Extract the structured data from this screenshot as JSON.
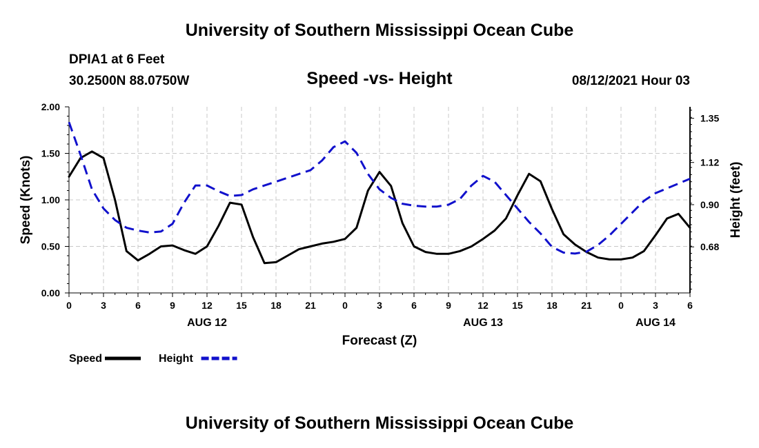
{
  "header": {
    "title": "University of Southern Mississippi Ocean Cube",
    "station": "DPIA1 at 6 Feet",
    "coords": "30.2500N  88.0750W",
    "subtitle": "Speed -vs- Height",
    "timestamp": "08/12/2021 Hour 03"
  },
  "footer": {
    "title": "University of Southern Mississippi Ocean Cube"
  },
  "chart_data": {
    "type": "line",
    "title": "Speed -vs- Height",
    "xlabel": "Forecast (Z)",
    "ylabel": "Speed (Knots)",
    "y2label": "Height (feet)",
    "xlim": [
      0,
      54
    ],
    "ylim": [
      0,
      2
    ],
    "y2lim": [
      0.44,
      1.41
    ],
    "grid": true,
    "x_ticks": [
      0,
      3,
      6,
      9,
      12,
      15,
      18,
      21,
      24,
      27,
      30,
      33,
      36,
      39,
      42,
      45,
      48,
      51,
      54
    ],
    "x_tick_labels": [
      "0",
      "3",
      "6",
      "9",
      "12",
      "15",
      "18",
      "21",
      "0",
      "3",
      "6",
      "9",
      "12",
      "15",
      "18",
      "21",
      "0",
      "3",
      "6"
    ],
    "y_ticks": [
      "0.00",
      "0.50",
      "1.00",
      "1.50",
      "2.00"
    ],
    "y2_ticks": [
      "0.68",
      "0.90",
      "1.12",
      "1.35"
    ],
    "date_labels": [
      {
        "x": 12,
        "label": "AUG 12"
      },
      {
        "x": 36,
        "label": "AUG 13"
      },
      {
        "x": 51,
        "label": "AUG 14"
      }
    ],
    "legend": [
      {
        "name": "Speed",
        "color": "#000000",
        "dash": "solid"
      },
      {
        "name": "Height",
        "color": "#1111cc",
        "dash": "dashed"
      }
    ],
    "series": [
      {
        "name": "Speed",
        "axis": "left",
        "color": "#000000",
        "x": [
          0,
          1,
          2,
          3,
          4,
          5,
          6,
          7,
          8,
          9,
          10,
          11,
          12,
          13,
          14,
          15,
          16,
          17,
          18,
          19,
          20,
          21,
          22,
          23,
          24,
          25,
          26,
          27,
          28,
          29,
          30,
          31,
          32,
          33,
          34,
          35,
          36,
          37,
          38,
          39,
          40,
          41,
          42,
          43,
          44,
          45,
          46,
          47,
          48,
          49,
          50,
          51,
          52,
          53,
          54
        ],
        "values": [
          1.25,
          1.45,
          1.52,
          1.45,
          1.0,
          0.45,
          0.35,
          0.42,
          0.5,
          0.51,
          0.46,
          0.42,
          0.5,
          0.72,
          0.97,
          0.95,
          0.6,
          0.32,
          0.33,
          0.4,
          0.47,
          0.5,
          0.53,
          0.55,
          0.58,
          0.7,
          1.1,
          1.3,
          1.15,
          0.75,
          0.5,
          0.44,
          0.42,
          0.42,
          0.45,
          0.5,
          0.58,
          0.67,
          0.8,
          1.05,
          1.28,
          1.2,
          0.9,
          0.63,
          0.52,
          0.44,
          0.38,
          0.36,
          0.36,
          0.38,
          0.45,
          0.62,
          0.8,
          0.85,
          0.7
        ]
      },
      {
        "name": "Height",
        "axis": "right",
        "color": "#1111cc",
        "x": [
          0,
          1,
          2,
          3,
          4,
          5,
          6,
          7,
          8,
          9,
          10,
          11,
          12,
          13,
          14,
          15,
          16,
          17,
          18,
          19,
          20,
          21,
          22,
          23,
          24,
          25,
          26,
          27,
          28,
          29,
          30,
          31,
          32,
          33,
          34,
          35,
          36,
          37,
          38,
          39,
          40,
          41,
          42,
          43,
          44,
          45,
          46,
          47,
          48,
          49,
          50,
          51,
          52,
          53,
          54
        ],
        "values": [
          1.33,
          1.16,
          0.98,
          0.88,
          0.82,
          0.78,
          0.765,
          0.755,
          0.76,
          0.8,
          0.91,
          1.0,
          1.0,
          0.97,
          0.945,
          0.95,
          0.98,
          1.0,
          1.02,
          1.04,
          1.06,
          1.08,
          1.13,
          1.2,
          1.23,
          1.17,
          1.06,
          0.98,
          0.935,
          0.905,
          0.895,
          0.89,
          0.89,
          0.9,
          0.93,
          1.0,
          1.05,
          1.02,
          0.95,
          0.88,
          0.81,
          0.75,
          0.68,
          0.65,
          0.645,
          0.655,
          0.69,
          0.74,
          0.8,
          0.86,
          0.92,
          0.96,
          0.985,
          1.01,
          1.035
        ]
      }
    ]
  }
}
